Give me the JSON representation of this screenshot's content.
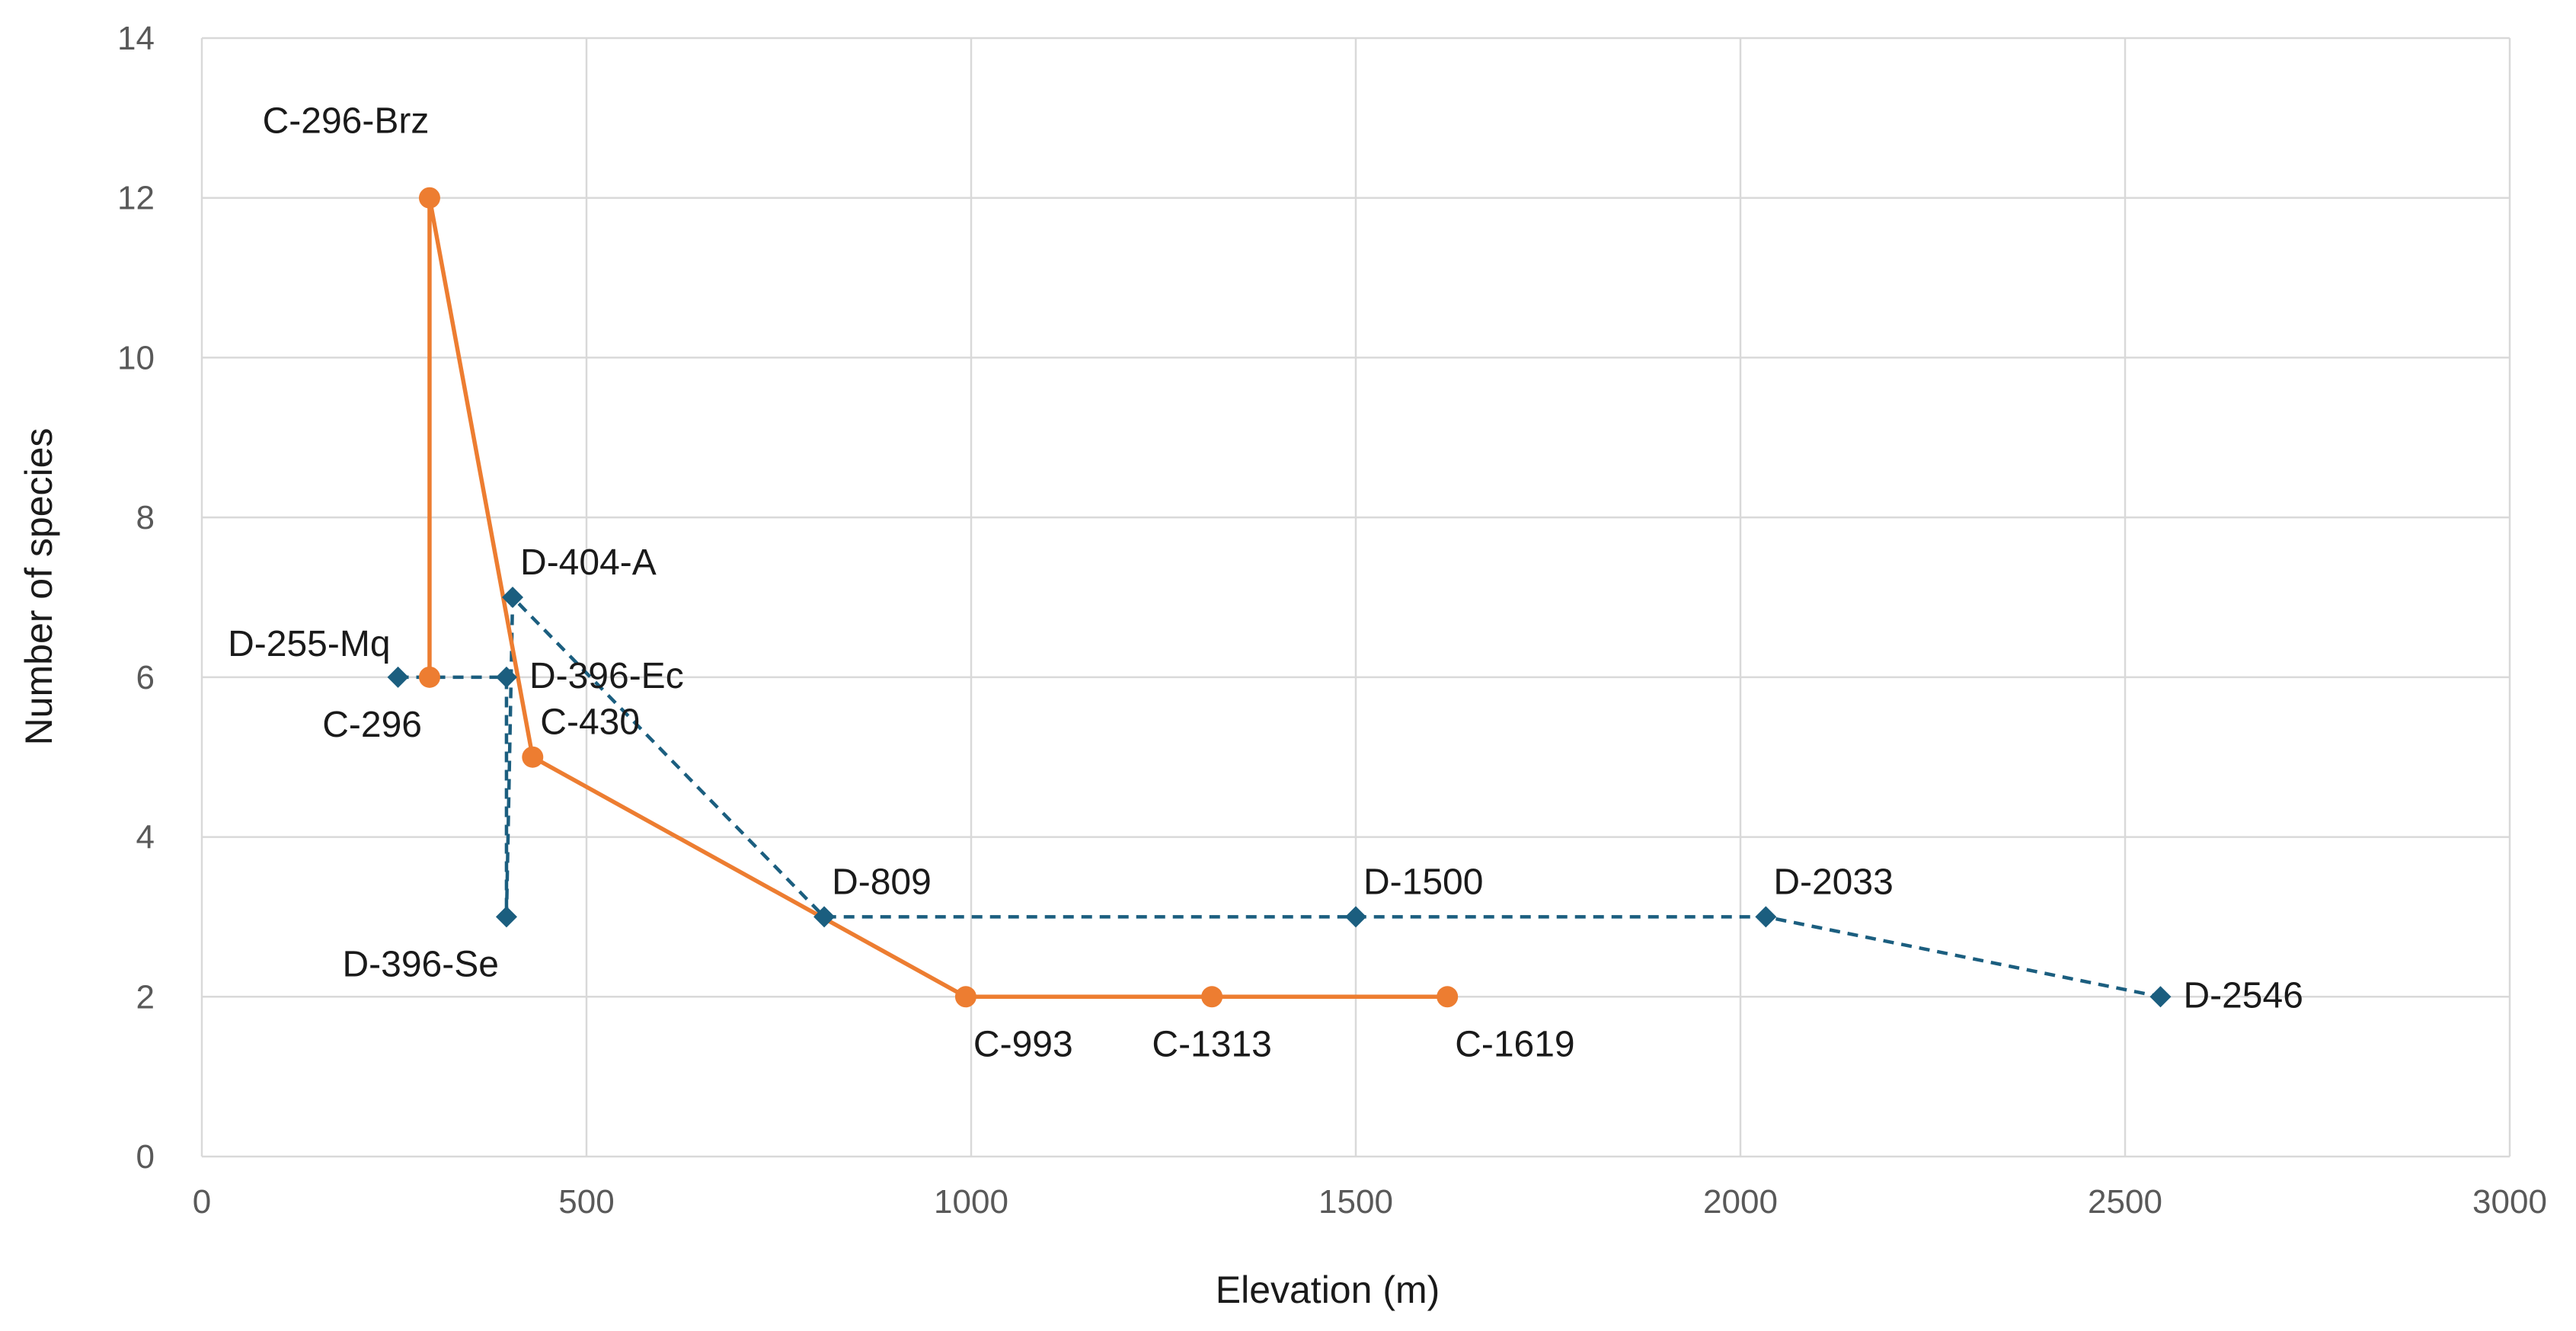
{
  "chart_data": {
    "type": "scatter",
    "title": "",
    "xlabel": "Elevation (m)",
    "ylabel": "Number of species",
    "xlim": [
      0,
      3000
    ],
    "ylim": [
      0,
      14
    ],
    "xticks": [
      0,
      500,
      1000,
      1500,
      2000,
      2500,
      3000
    ],
    "yticks": [
      0,
      2,
      4,
      6,
      8,
      10,
      12,
      14
    ],
    "xtick_labels": [
      "0",
      "500",
      "1000",
      "1500",
      "2000",
      "2500",
      "3000"
    ],
    "ytick_labels": [
      "0",
      "2",
      "4",
      "6",
      "8",
      "10",
      "12",
      "14"
    ],
    "grid": true,
    "legend": "none",
    "series": [
      {
        "name": "D",
        "color": "#1b5e7f",
        "marker": "diamond",
        "line": "dashed",
        "points": [
          {
            "x": 255,
            "y": 6,
            "label": "D-255-Mq",
            "label_pos": "upper-left"
          },
          {
            "x": 396,
            "y": 6,
            "label": "D-396-Ec",
            "label_pos": "right"
          },
          {
            "x": 396,
            "y": 3,
            "label": "D-396-Se",
            "label_pos": "lower-left"
          },
          {
            "x": 404,
            "y": 7,
            "label": "D-404-A",
            "label_pos": "upper-right"
          },
          {
            "x": 809,
            "y": 3,
            "label": "D-809",
            "label_pos": "upper-right"
          },
          {
            "x": 1500,
            "y": 3,
            "label": "D-1500",
            "label_pos": "upper-right"
          },
          {
            "x": 2033,
            "y": 3,
            "label": "D-2033",
            "label_pos": "upper-right"
          },
          {
            "x": 2546,
            "y": 2,
            "label": "D-2546",
            "label_pos": "right"
          }
        ]
      },
      {
        "name": "C",
        "color": "#ed7d31",
        "marker": "circle",
        "line": "solid",
        "points": [
          {
            "x": 296,
            "y": 6,
            "label": "C-296",
            "label_pos": "lower-left"
          },
          {
            "x": 296,
            "y": 12,
            "label": "C-296-Brz",
            "label_pos": "above-far"
          },
          {
            "x": 430,
            "y": 5,
            "label": "C-430",
            "label_pos": "upper-right"
          },
          {
            "x": 993,
            "y": 2,
            "label": "C-993",
            "label_pos": "lower-right"
          },
          {
            "x": 1313,
            "y": 2,
            "label": "C-1313",
            "label_pos": "below"
          },
          {
            "x": 1619,
            "y": 2,
            "label": "C-1619",
            "label_pos": "lower-right"
          }
        ]
      }
    ]
  }
}
